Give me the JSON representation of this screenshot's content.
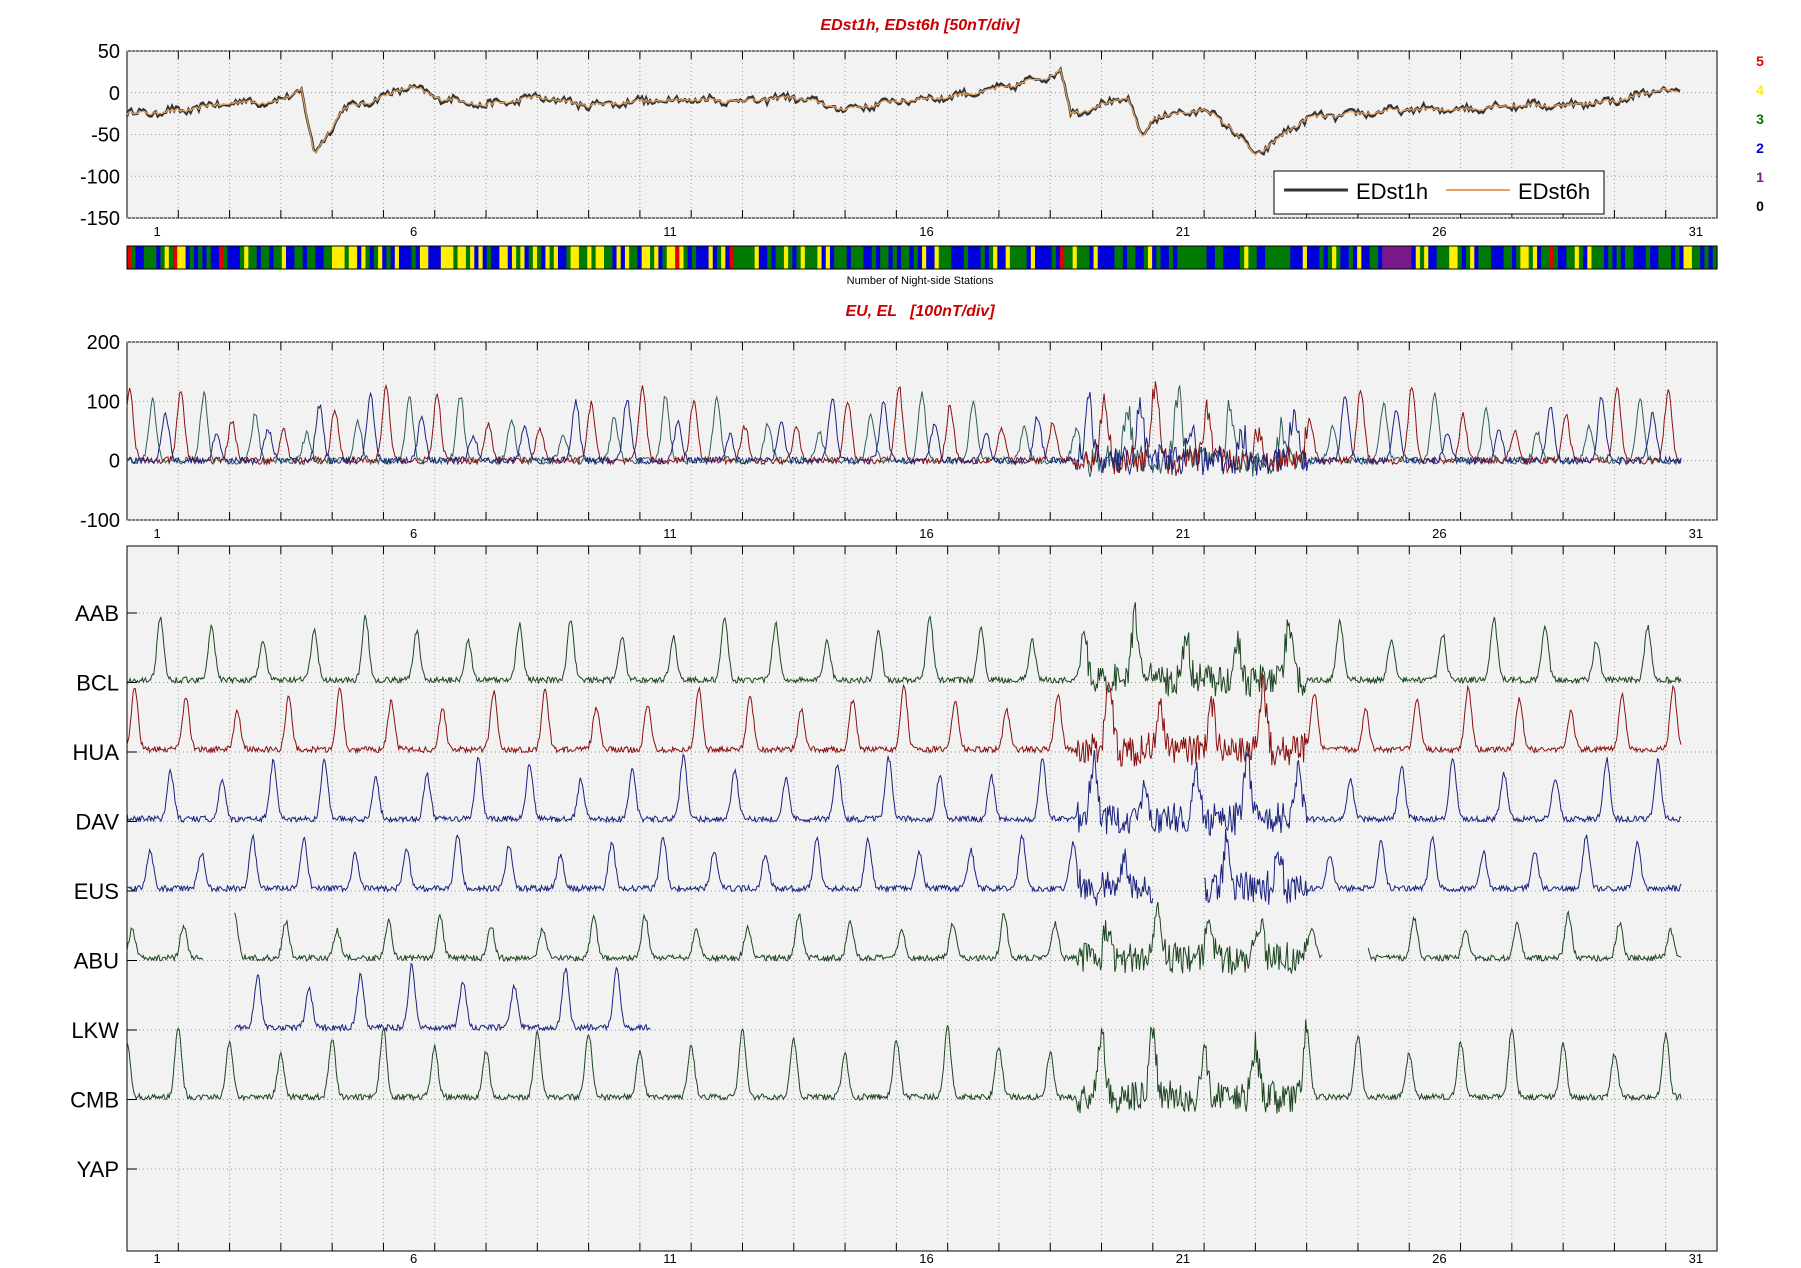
{
  "colors": {
    "panel_bg": "#f2f2f2",
    "title": "#cc0000",
    "edst1h": "#333333",
    "edst6h": "#e6a05a",
    "dark_green": "#1e4620",
    "dark_red": "#8b1010",
    "dark_blue": "#1a237e",
    "teal": "#2e5e5e"
  },
  "night_stations": {
    "label": "Number of Night-side Stations",
    "legend": [
      {
        "value": "5",
        "color": "#e60000"
      },
      {
        "value": "4",
        "color": "#ffee00"
      },
      {
        "value": "3",
        "color": "#007a00"
      },
      {
        "value": "2",
        "color": "#0000dd"
      },
      {
        "value": "1",
        "color": "#7a1a8a"
      },
      {
        "value": "0",
        "color": "#000000"
      }
    ]
  },
  "chart_data": [
    {
      "type": "line",
      "title": "EDst1h, EDst6h [50nT/div]",
      "xlim": [
        0,
        31
      ],
      "ylim": [
        -150,
        50
      ],
      "x_ticks": [
        "1",
        "6",
        "11",
        "16",
        "21",
        "26",
        "31"
      ],
      "y_ticks": [
        "50",
        "0",
        "-50",
        "-100",
        "-150"
      ],
      "grid": true,
      "legend_position": "bottom-right",
      "series": [
        {
          "name": "EDst1h",
          "color": "#333333"
        },
        {
          "name": "EDst6h",
          "color": "#e6a05a"
        }
      ],
      "day_values": [
        {
          "x": 0,
          "y": -25
        },
        {
          "x": 1,
          "y": -22
        },
        {
          "x": 2,
          "y": -12
        },
        {
          "x": 3,
          "y": -10
        },
        {
          "x": 3.4,
          "y": 5
        },
        {
          "x": 3.65,
          "y": -75
        },
        {
          "x": 4.2,
          "y": -20
        },
        {
          "x": 5,
          "y": -5
        },
        {
          "x": 5.5,
          "y": 8
        },
        {
          "x": 6,
          "y": -5
        },
        {
          "x": 7,
          "y": -15
        },
        {
          "x": 8,
          "y": -5
        },
        {
          "x": 9,
          "y": -15
        },
        {
          "x": 10,
          "y": -10
        },
        {
          "x": 11,
          "y": -8
        },
        {
          "x": 12,
          "y": -10
        },
        {
          "x": 13,
          "y": -5
        },
        {
          "x": 14,
          "y": -20
        },
        {
          "x": 15,
          "y": -10
        },
        {
          "x": 16,
          "y": -5
        },
        {
          "x": 17,
          "y": 5
        },
        {
          "x": 18,
          "y": 20
        },
        {
          "x": 18.2,
          "y": 28
        },
        {
          "x": 18.4,
          "y": -25
        },
        {
          "x": 19,
          "y": -15
        },
        {
          "x": 19.5,
          "y": -5
        },
        {
          "x": 19.8,
          "y": -55
        },
        {
          "x": 20,
          "y": -30
        },
        {
          "x": 21,
          "y": -20
        },
        {
          "x": 21.5,
          "y": -40
        },
        {
          "x": 22,
          "y": -75
        },
        {
          "x": 23,
          "y": -30
        },
        {
          "x": 24,
          "y": -25
        },
        {
          "x": 25,
          "y": -20
        },
        {
          "x": 26,
          "y": -20
        },
        {
          "x": 27,
          "y": -15
        },
        {
          "x": 28,
          "y": -15
        },
        {
          "x": 29,
          "y": -10
        },
        {
          "x": 30,
          "y": 5
        },
        {
          "x": 30.3,
          "y": -3
        }
      ]
    },
    {
      "type": "line",
      "title": "EU, EL   [100nT/div]",
      "xlim": [
        0,
        31
      ],
      "ylim": [
        -100,
        200
      ],
      "x_ticks": [
        "1",
        "6",
        "11",
        "16",
        "21",
        "26",
        "31"
      ],
      "y_ticks": [
        "200",
        "100",
        "0",
        "-100"
      ],
      "grid": true,
      "series": [
        {
          "color": "#2e5e5e",
          "phase": 0.0,
          "peak": 100
        },
        {
          "color": "#8b1010",
          "phase": 0.55,
          "peak": 110
        },
        {
          "color": "#1a237e",
          "phase": 0.25,
          "peak": 95
        }
      ]
    },
    {
      "type": "line",
      "xlim": [
        0,
        31
      ],
      "x_ticks": [
        "1",
        "6",
        "11",
        "16",
        "21",
        "26",
        "31"
      ],
      "grid": true,
      "stations": [
        {
          "name": "AAB",
          "color": "#1e4620",
          "phase": 0.15,
          "amp": 1.0,
          "active": [
            [
              0,
              30.3
            ]
          ]
        },
        {
          "name": "BCL",
          "color": "#8b1010",
          "phase": 0.65,
          "amp": 1.0,
          "active": [
            [
              0,
              30.3
            ]
          ]
        },
        {
          "name": "HUA",
          "color": "#1a237e",
          "phase": 0.35,
          "amp": 1.0,
          "active": [
            [
              0,
              30.3
            ]
          ]
        },
        {
          "name": "DAV",
          "color": "#1a237e",
          "phase": 0.95,
          "amp": 0.85,
          "active": [
            [
              0,
              20.0
            ],
            [
              21.0,
              30.3
            ]
          ]
        },
        {
          "name": "EUS",
          "color": "#1e4620",
          "phase": 0.6,
          "amp": 0.7,
          "active": [
            [
              0,
              1.5
            ],
            [
              2.1,
              23.3
            ],
            [
              24.2,
              30.3
            ]
          ]
        },
        {
          "name": "ABU",
          "color": "#1a237e",
          "phase": 0.05,
          "amp": 1.0,
          "active": [
            [
              2.1,
              10.2
            ]
          ]
        },
        {
          "name": "LKW",
          "color": "#1e4620",
          "phase": 0.5,
          "amp": 1.1,
          "active": [
            [
              0,
              30.3
            ]
          ]
        },
        {
          "name": "CMB",
          "color": "#1e4620",
          "phase": 0.5,
          "amp": 0.0,
          "active": []
        },
        {
          "name": "YAP",
          "color": "#1e4620",
          "phase": 0.0,
          "amp": 0.0,
          "active": []
        }
      ]
    }
  ]
}
